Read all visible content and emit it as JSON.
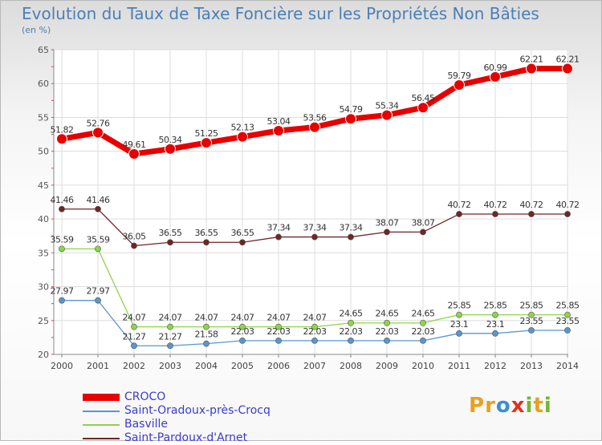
{
  "title": "Evolution du Taux de Taxe Foncière sur les Propriétés Non Bâties",
  "unit": "(en %)",
  "logo": {
    "text": "Proxiti",
    "letters": [
      "P",
      "r",
      "o",
      "x",
      "i",
      "t",
      "i"
    ],
    "colors": [
      "#e8a020",
      "#e8a020",
      "#3a8fd8",
      "#e03020",
      "#70b830",
      "#e8a020",
      "#70b830"
    ]
  },
  "chart_data": {
    "type": "line",
    "title": "Evolution du Taux de Taxe Foncière sur les Propriétés Non Bâties",
    "ylabel": "(en %)",
    "x": [
      "2000",
      "2001",
      "2002",
      "2003",
      "2004",
      "2005",
      "2006",
      "2007",
      "2008",
      "2009",
      "2010",
      "2011",
      "2012",
      "2013",
      "2014"
    ],
    "ylim": [
      20,
      65
    ],
    "yticks": [
      20,
      25,
      30,
      35,
      40,
      45,
      50,
      55,
      60,
      65
    ],
    "grid": true,
    "series": [
      {
        "name": "CROCO",
        "color": "#e80000",
        "values": [
          51.82,
          52.76,
          49.61,
          50.34,
          51.25,
          52.13,
          53.04,
          53.56,
          54.79,
          55.34,
          56.45,
          59.79,
          60.99,
          62.21,
          62.21
        ],
        "labels": [
          "51.82",
          "52.76",
          "49.61",
          "50.34",
          "51.25",
          "52.13",
          "53.04",
          "53.56",
          "54.79",
          "55.34",
          "56.45",
          "59.79",
          "60.99",
          "62.21",
          "62.21"
        ]
      },
      {
        "name": "Saint-Oradoux-près-Crocq",
        "color": "#5b96c8",
        "values": [
          27.97,
          27.97,
          21.27,
          21.27,
          21.58,
          22.03,
          22.03,
          22.03,
          22.03,
          22.03,
          22.03,
          23.1,
          23.1,
          23.55,
          23.55
        ],
        "labels": [
          "27.97",
          "27.97",
          "21.27",
          "21.27",
          "21.58",
          "22.03",
          "22.03",
          "22.03",
          "22.03",
          "22.03",
          "22.03",
          "23.1",
          "23.1",
          "23.55",
          "23.55"
        ]
      },
      {
        "name": "Basville",
        "color": "#8ed44a",
        "values": [
          35.59,
          35.59,
          24.07,
          24.07,
          24.07,
          24.07,
          24.07,
          24.07,
          24.65,
          24.65,
          24.65,
          25.85,
          25.85,
          25.85,
          25.85
        ],
        "labels": [
          "35.59",
          "35.59",
          "24.07",
          "24.07",
          "24.07",
          "24.07",
          "24.07",
          "24.07",
          "24.65",
          "24.65",
          "24.65",
          "25.85",
          "25.85",
          "25.85",
          "25.85"
        ]
      },
      {
        "name": "Saint-Pardoux-d'Arnet",
        "color": "#6e2626",
        "values": [
          41.46,
          41.46,
          36.05,
          36.55,
          36.55,
          36.55,
          37.34,
          37.34,
          37.34,
          38.07,
          38.07,
          40.72,
          40.72,
          40.72,
          40.72
        ],
        "labels": [
          "41.46",
          "41.46",
          "36.05",
          "36.55",
          "36.55",
          "36.55",
          "37.34",
          "37.34",
          "37.34",
          "38.07",
          "38.07",
          "40.72",
          "40.72",
          "40.72",
          "40.72"
        ]
      }
    ]
  },
  "legend": [
    {
      "label": "CROCO",
      "color": "#e80000",
      "thick": true
    },
    {
      "label": "Saint-Oradoux-près-Crocq",
      "color": "#5b96c8",
      "thick": false
    },
    {
      "label": "Basville",
      "color": "#8ed44a",
      "thick": false
    },
    {
      "label": "Saint-Pardoux-d'Arnet",
      "color": "#6e2626",
      "thick": false
    }
  ]
}
